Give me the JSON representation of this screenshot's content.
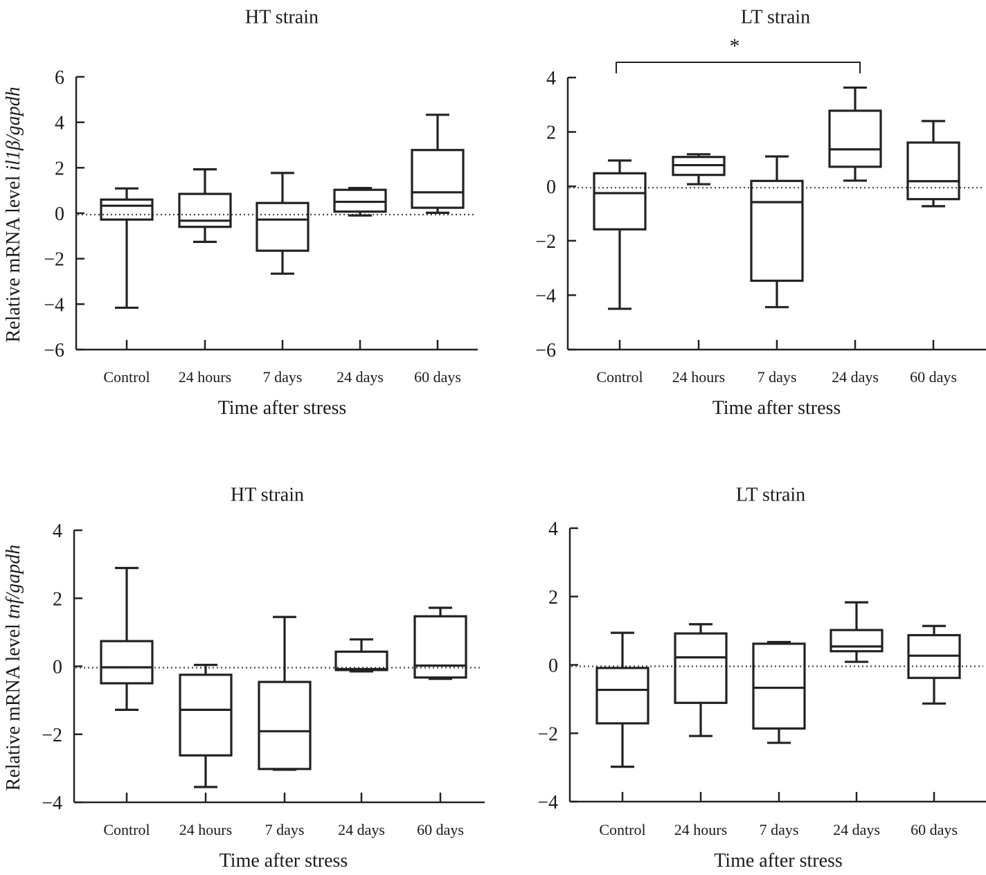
{
  "chart_data": [
    {
      "type": "box",
      "title": "HT strain",
      "xlabel": "Time after stress",
      "ylabel_prefix": "Relative mRNA level ",
      "ylabel_italic": "il1β/gapdh",
      "ylim": [
        -6,
        6
      ],
      "yticks": [
        6,
        4,
        2,
        0,
        -2,
        -4,
        -6
      ],
      "ytick_labels": [
        "6",
        "4",
        "2",
        "0",
        "−2",
        "−4",
        "−6"
      ],
      "reference_line": 0,
      "categories": [
        "Control",
        "24 hours",
        "7 days",
        "24 days",
        "60 days"
      ],
      "boxes": [
        {
          "min": -4.16,
          "q1": -0.28,
          "median": 0.33,
          "q3": 0.6,
          "max": 1.09
        },
        {
          "min": -1.26,
          "q1": -0.6,
          "median": -0.33,
          "q3": 0.85,
          "max": 1.93
        },
        {
          "min": -2.66,
          "q1": -1.65,
          "median": -0.28,
          "q3": 0.45,
          "max": 1.77
        },
        {
          "min": -0.1,
          "q1": 0.07,
          "median": 0.5,
          "q3": 1.03,
          "max": 1.11
        },
        {
          "min": 0.02,
          "q1": 0.24,
          "median": 0.92,
          "q3": 2.78,
          "max": 4.33
        }
      ],
      "significance": null
    },
    {
      "type": "box",
      "title": "LT strain",
      "xlabel": "Time after stress",
      "ylabel_prefix": "",
      "ylabel_italic": "",
      "ylim": [
        -6,
        4
      ],
      "yticks": [
        4,
        2,
        0,
        -2,
        -4,
        -6
      ],
      "ytick_labels": [
        "4",
        "2",
        "0",
        "−2",
        "−4",
        "−6"
      ],
      "reference_line": 0,
      "categories": [
        "Control",
        "24 hours",
        "7 days",
        "24 days",
        "60 days"
      ],
      "boxes": [
        {
          "min": -4.5,
          "q1": -1.58,
          "median": -0.25,
          "q3": 0.48,
          "max": 0.95
        },
        {
          "min": 0.08,
          "q1": 0.42,
          "median": 0.78,
          "q3": 1.08,
          "max": 1.18
        },
        {
          "min": -4.44,
          "q1": -3.47,
          "median": -0.58,
          "q3": 0.2,
          "max": 1.1
        },
        {
          "min": 0.21,
          "q1": 0.72,
          "median": 1.36,
          "q3": 2.78,
          "max": 3.63
        },
        {
          "min": -0.73,
          "q1": -0.47,
          "median": 0.19,
          "q3": 1.61,
          "max": 2.4
        }
      ],
      "significance": {
        "from": 0,
        "to": 3,
        "label": "*"
      }
    },
    {
      "type": "box",
      "title": "HT strain",
      "xlabel": "Time after stress",
      "ylabel_prefix": "Relative mRNA level ",
      "ylabel_italic": "tnf/gapdh",
      "ylim": [
        -4,
        4
      ],
      "yticks": [
        4,
        2,
        0,
        -2,
        -4
      ],
      "ytick_labels": [
        "4",
        "2",
        "0",
        "−2",
        "−4"
      ],
      "reference_line": 0,
      "categories": [
        "Control",
        "24 hours",
        "7 days",
        "24 days",
        "60 days"
      ],
      "boxes": [
        {
          "min": -1.28,
          "q1": -0.5,
          "median": -0.03,
          "q3": 0.74,
          "max": 2.89
        },
        {
          "min": -3.55,
          "q1": -2.62,
          "median": -1.28,
          "q3": -0.25,
          "max": 0.04
        },
        {
          "min": -3.04,
          "q1": -3.02,
          "median": -1.91,
          "q3": -0.46,
          "max": 1.45
        },
        {
          "min": -0.15,
          "q1": -0.11,
          "median": -0.08,
          "q3": 0.43,
          "max": 0.79
        },
        {
          "min": -0.37,
          "q1": -0.33,
          "median": 0.02,
          "q3": 1.47,
          "max": 1.72
        }
      ],
      "significance": null
    },
    {
      "type": "box",
      "title": "LT strain",
      "xlabel": "Time after stress",
      "ylabel_prefix": "",
      "ylabel_italic": "",
      "ylim": [
        -4,
        4
      ],
      "yticks": [
        4,
        2,
        0,
        -2,
        -4
      ],
      "ytick_labels": [
        "4",
        "2",
        "0",
        "−2",
        "−4"
      ],
      "reference_line": 0,
      "categories": [
        "Control",
        "24 hours",
        "7 days",
        "24 days",
        "60 days"
      ],
      "boxes": [
        {
          "min": -2.98,
          "q1": -1.71,
          "median": -0.73,
          "q3": -0.09,
          "max": 0.94
        },
        {
          "min": -2.08,
          "q1": -1.11,
          "median": 0.22,
          "q3": 0.92,
          "max": 1.19
        },
        {
          "min": -2.28,
          "q1": -1.86,
          "median": -0.67,
          "q3": 0.62,
          "max": 0.67
        },
        {
          "min": 0.09,
          "q1": 0.4,
          "median": 0.54,
          "q3": 1.02,
          "max": 1.83
        },
        {
          "min": -1.13,
          "q1": -0.38,
          "median": 0.27,
          "q3": 0.87,
          "max": 1.14
        }
      ],
      "significance": null
    }
  ]
}
